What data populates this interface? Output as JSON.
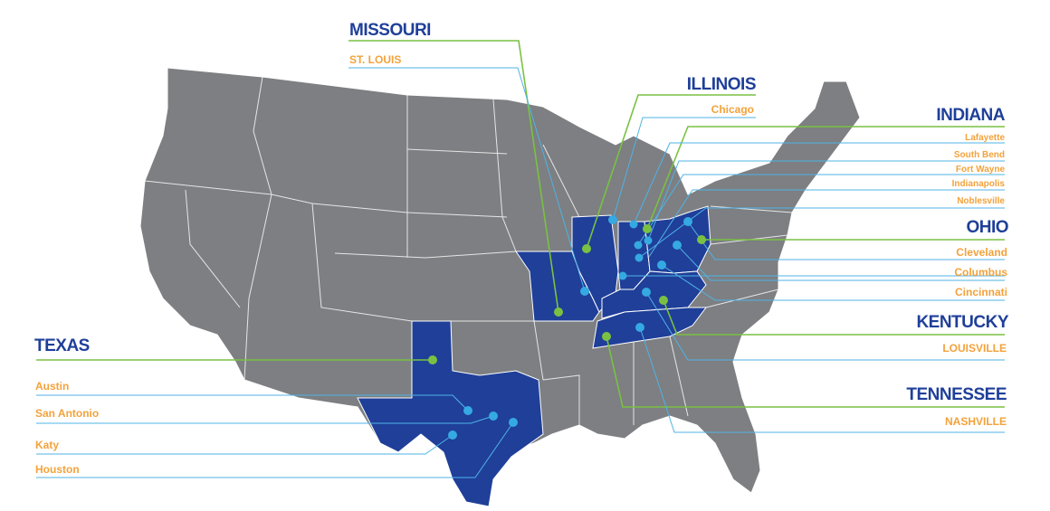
{
  "states": [
    {
      "name": "MISSOURI",
      "cities": [
        "ST. LOUIS"
      ]
    },
    {
      "name": "ILLINOIS",
      "cities": [
        "Chicago"
      ]
    },
    {
      "name": "INDIANA",
      "cities": [
        "Lafayette",
        "South Bend",
        "Fort Wayne",
        "Indianapolis",
        "Noblesville"
      ]
    },
    {
      "name": "OHIO",
      "cities": [
        "Cleveland",
        "Columbus",
        "Cincinnati"
      ]
    },
    {
      "name": "KENTUCKY",
      "cities": [
        "LOUISVILLE"
      ]
    },
    {
      "name": "TENNESSEE",
      "cities": [
        "NASHVILLE"
      ]
    },
    {
      "name": "TEXAS",
      "cities": [
        "Austin",
        "San Antonio",
        "Katy",
        "Houston"
      ]
    }
  ]
}
